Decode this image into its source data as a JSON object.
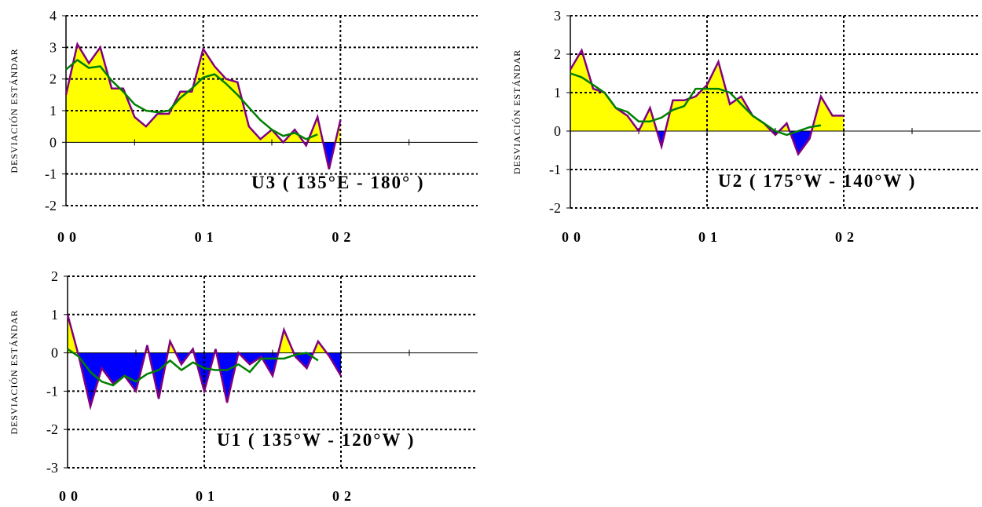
{
  "colors": {
    "positive_fill": "#ffff00",
    "negative_fill": "#0000ff",
    "raw_line": "#800080",
    "smooth_line": "#008000",
    "grid": "#000000"
  },
  "chart_data": [
    {
      "id": "U3",
      "type": "area",
      "annotation": "U3 ( 135°E - 180° )",
      "ylabel": "DESVIACIÓN ESTÁNDAR",
      "xticks": [
        "00",
        "01",
        "02"
      ],
      "xlim": [
        0,
        3
      ],
      "ylim": [
        -2,
        4
      ],
      "yticks": [
        -2,
        -1,
        0,
        1,
        2,
        3,
        4
      ],
      "grid": true,
      "series": [
        {
          "role": "raw",
          "x": [
            0,
            0.083,
            0.167,
            0.25,
            0.333,
            0.417,
            0.5,
            0.583,
            0.667,
            0.75,
            0.833,
            0.917,
            1,
            1.083,
            1.167,
            1.25,
            1.333,
            1.417,
            1.5,
            1.583,
            1.667,
            1.75,
            1.833,
            1.917,
            2
          ],
          "values": [
            1.5,
            3.1,
            2.5,
            3.0,
            1.7,
            1.7,
            0.8,
            0.5,
            0.9,
            0.9,
            1.6,
            1.6,
            2.95,
            2.4,
            2.0,
            1.9,
            0.5,
            0.1,
            0.4,
            0.0,
            0.4,
            -0.1,
            0.8,
            -0.85,
            0.7
          ]
        },
        {
          "role": "smoothed",
          "x": [
            0,
            0.083,
            0.167,
            0.25,
            0.333,
            0.417,
            0.5,
            0.583,
            0.667,
            0.75,
            0.833,
            0.917,
            1,
            1.083,
            1.167,
            1.25,
            1.333,
            1.417,
            1.5,
            1.583,
            1.667,
            1.75,
            1.833
          ],
          "values": [
            2.3,
            2.6,
            2.35,
            2.4,
            1.95,
            1.6,
            1.2,
            1.0,
            0.95,
            1.0,
            1.4,
            1.7,
            2.05,
            2.15,
            1.85,
            1.5,
            1.1,
            0.7,
            0.4,
            0.2,
            0.3,
            0.1,
            0.25
          ]
        }
      ]
    },
    {
      "id": "U2",
      "type": "area",
      "annotation": "U2 ( 175°W - 140°W )",
      "ylabel": "DESVIACIÓN ESTÁNDAR",
      "xticks": [
        "00",
        "01",
        "02"
      ],
      "xlim": [
        0,
        3
      ],
      "ylim": [
        -2,
        3
      ],
      "yticks": [
        -2,
        -1,
        0,
        1,
        2,
        3
      ],
      "grid": true,
      "series": [
        {
          "role": "raw",
          "x": [
            0,
            0.083,
            0.167,
            0.25,
            0.333,
            0.417,
            0.5,
            0.583,
            0.667,
            0.75,
            0.833,
            0.917,
            1,
            1.083,
            1.167,
            1.25,
            1.333,
            1.417,
            1.5,
            1.583,
            1.667,
            1.75,
            1.833,
            1.917,
            2
          ],
          "values": [
            1.6,
            2.1,
            1.1,
            1.0,
            0.6,
            0.4,
            0.0,
            0.6,
            -0.4,
            0.8,
            0.8,
            0.9,
            1.2,
            1.8,
            0.7,
            0.9,
            0.4,
            0.2,
            -0.1,
            0.2,
            -0.6,
            -0.2,
            0.9,
            0.4,
            0.4
          ]
        },
        {
          "role": "smoothed",
          "x": [
            0,
            0.083,
            0.167,
            0.25,
            0.333,
            0.417,
            0.5,
            0.583,
            0.667,
            0.75,
            0.833,
            0.917,
            1,
            1.083,
            1.167,
            1.25,
            1.333,
            1.417,
            1.5,
            1.583,
            1.667,
            1.75,
            1.833
          ],
          "values": [
            1.5,
            1.4,
            1.2,
            1.0,
            0.6,
            0.5,
            0.25,
            0.25,
            0.35,
            0.55,
            0.65,
            1.1,
            1.1,
            1.1,
            1.0,
            0.7,
            0.4,
            0.2,
            0.0,
            -0.1,
            0.0,
            0.1,
            0.15
          ]
        }
      ]
    },
    {
      "id": "U1",
      "type": "area",
      "annotation": "U1 ( 135°W - 120°W )",
      "ylabel": "DESVIACIÓN ESTÁNDAR",
      "xticks": [
        "00",
        "01",
        "02"
      ],
      "xlim": [
        0,
        3
      ],
      "ylim": [
        -3,
        2
      ],
      "yticks": [
        -3,
        -2,
        -1,
        0,
        1,
        2
      ],
      "grid": true,
      "series": [
        {
          "role": "raw",
          "x": [
            0,
            0.083,
            0.167,
            0.25,
            0.333,
            0.417,
            0.5,
            0.583,
            0.667,
            0.75,
            0.833,
            0.917,
            1,
            1.083,
            1.167,
            1.25,
            1.333,
            1.417,
            1.5,
            1.583,
            1.667,
            1.75,
            1.833,
            1.917,
            2
          ],
          "values": [
            1.0,
            -0.1,
            -1.4,
            -0.4,
            -0.8,
            -0.6,
            -1.0,
            0.2,
            -1.2,
            0.3,
            -0.3,
            0.1,
            -1.0,
            0.1,
            -1.3,
            0.0,
            -0.3,
            -0.1,
            -0.6,
            0.6,
            -0.1,
            -0.4,
            0.3,
            -0.1,
            -0.6
          ]
        },
        {
          "role": "smoothed",
          "x": [
            0,
            0.083,
            0.167,
            0.25,
            0.333,
            0.417,
            0.5,
            0.583,
            0.667,
            0.75,
            0.833,
            0.917,
            1,
            1.083,
            1.167,
            1.25,
            1.333,
            1.417,
            1.5,
            1.583,
            1.667,
            1.75,
            1.833
          ],
          "values": [
            0.1,
            -0.1,
            -0.5,
            -0.75,
            -0.85,
            -0.6,
            -0.75,
            -0.55,
            -0.45,
            -0.2,
            -0.45,
            -0.25,
            -0.4,
            -0.45,
            -0.45,
            -0.3,
            -0.5,
            -0.15,
            -0.15,
            -0.15,
            -0.05,
            0.0,
            -0.2
          ]
        }
      ]
    }
  ]
}
